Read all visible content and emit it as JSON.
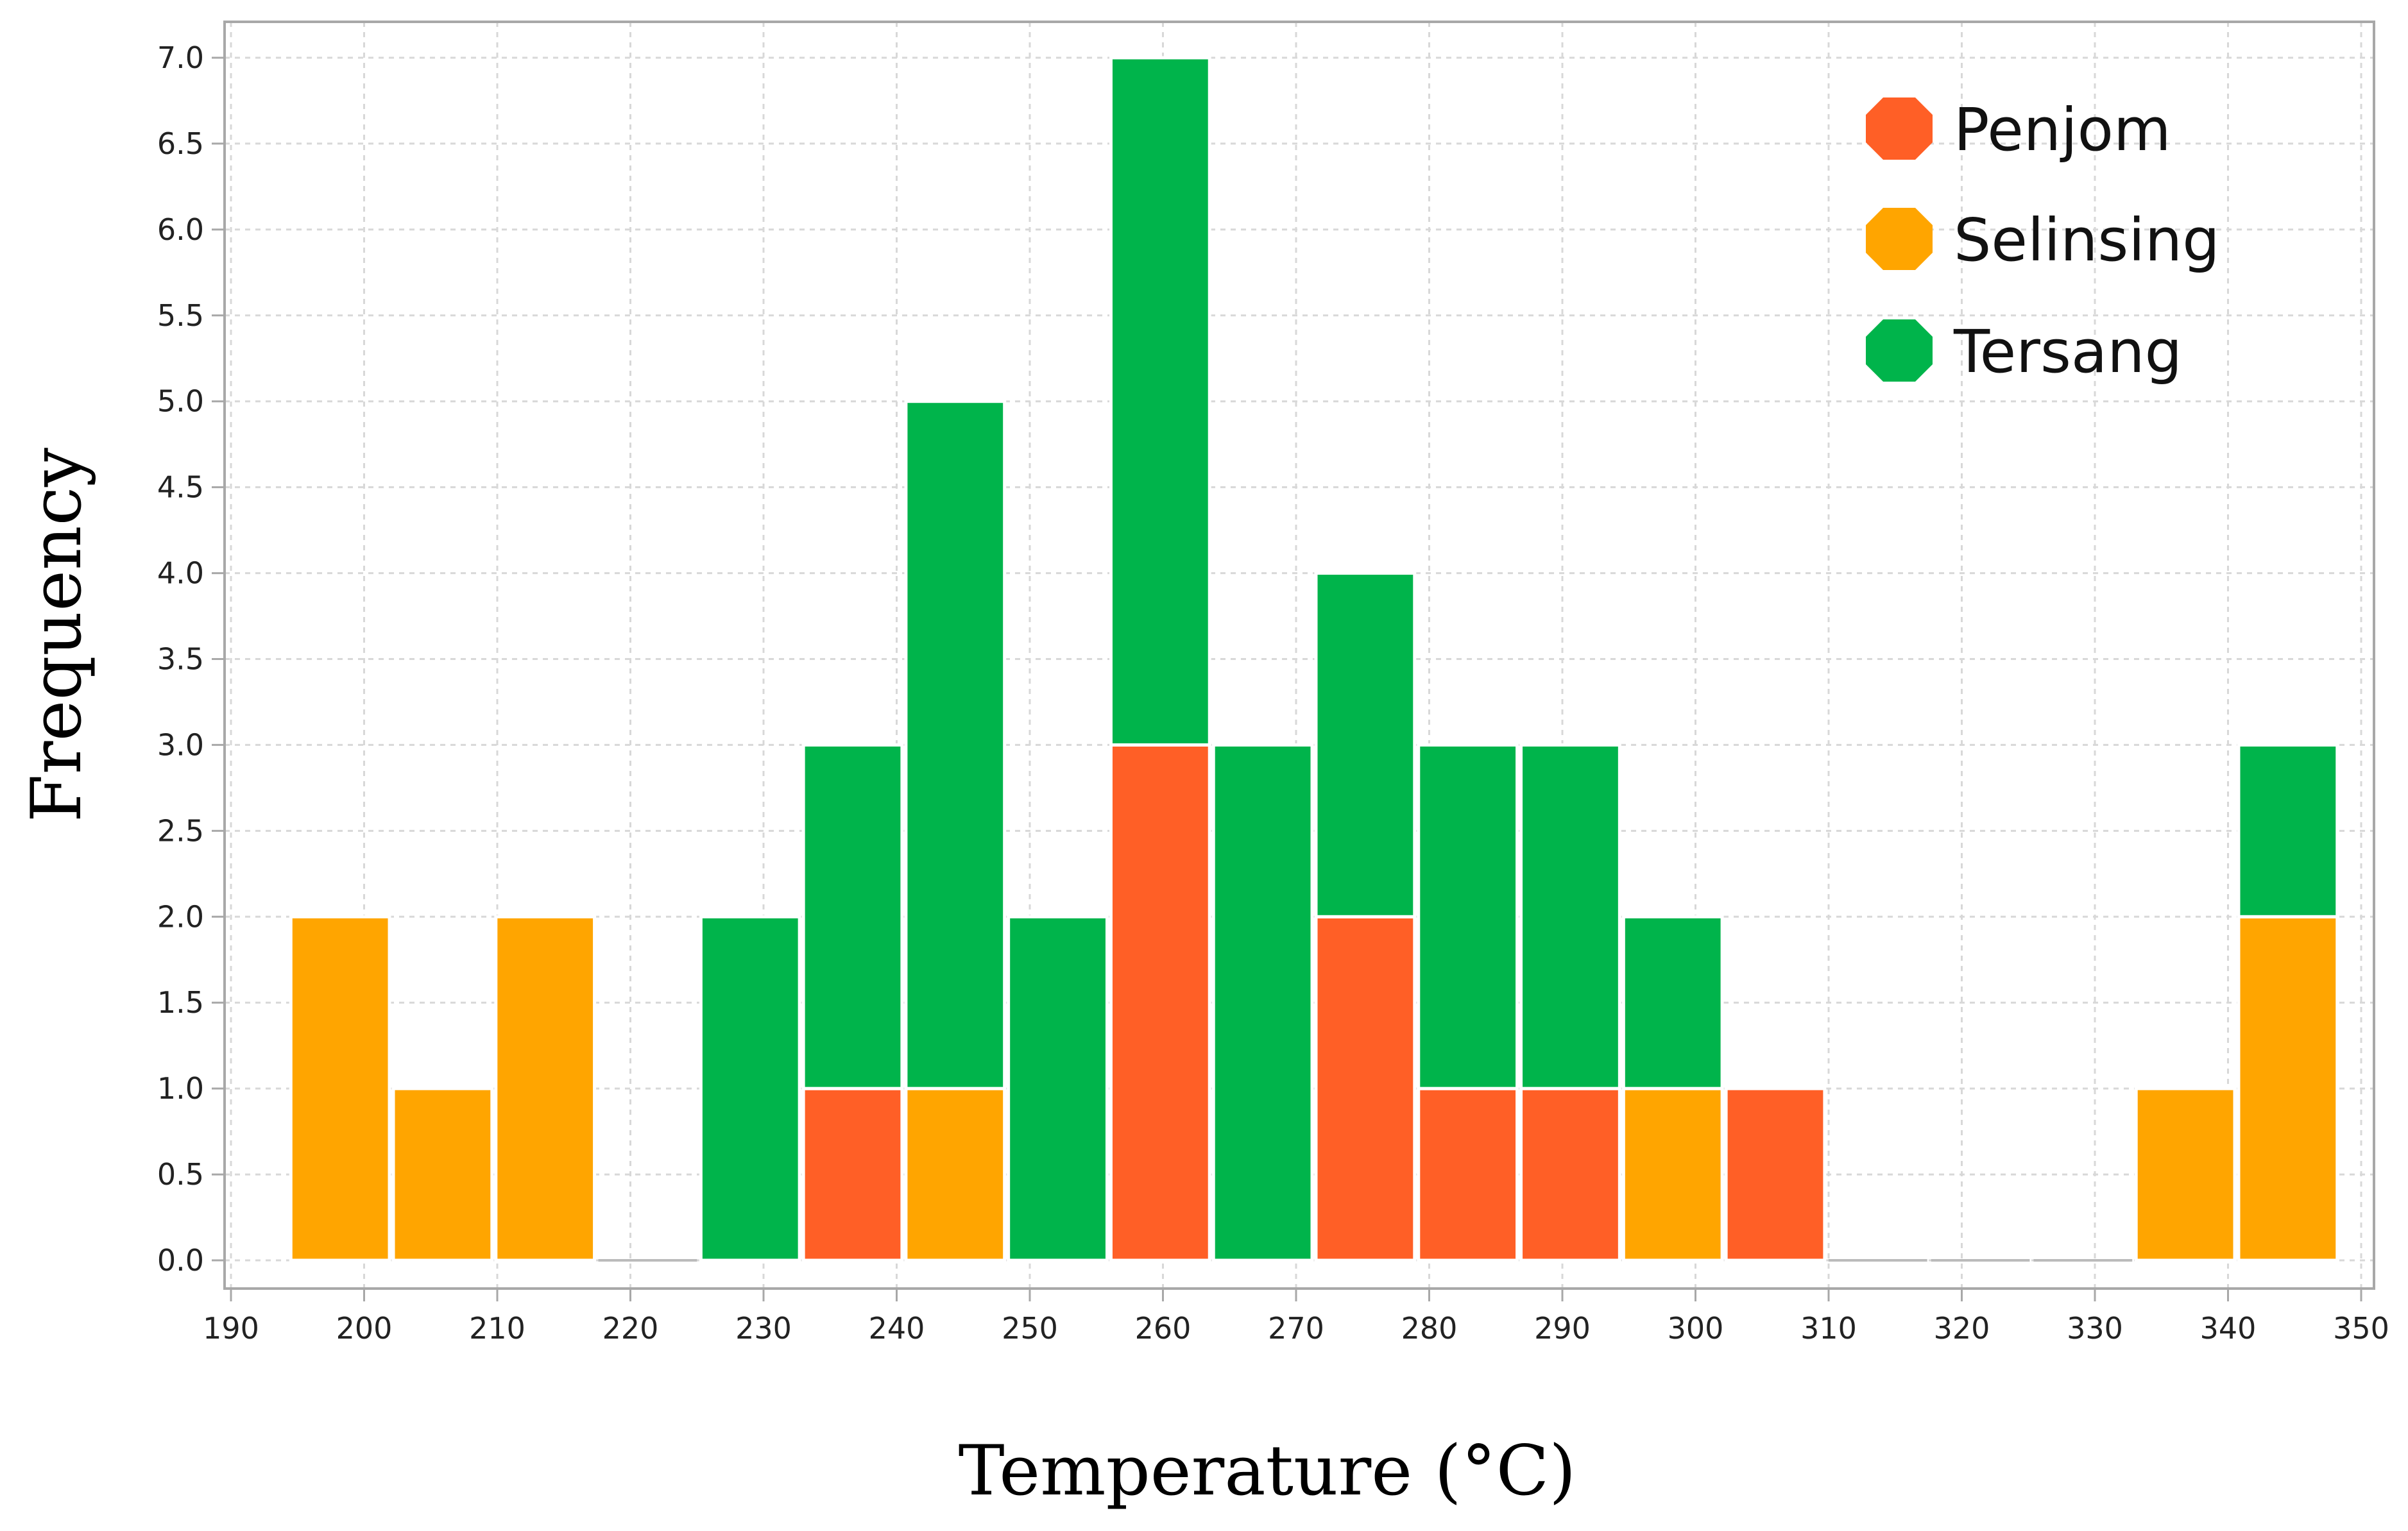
{
  "colors": {
    "penjom": "#FF5F26",
    "selinsing": "#FFA500",
    "tersang": "#00B44B",
    "grid": "#D8D8D8",
    "frame": "#A8A8A8"
  },
  "chart_data": {
    "type": "bar",
    "stacked": true,
    "xlabel": "Temperature (°C)",
    "ylabel": "Frequency",
    "xlim": [
      190,
      350
    ],
    "ylim": [
      0,
      7
    ],
    "x_ticks": [
      "190",
      "200",
      "210",
      "220",
      "230",
      "240",
      "250",
      "260",
      "270",
      "280",
      "290",
      "300",
      "310",
      "320",
      "330",
      "340",
      "350"
    ],
    "y_ticks": [
      "0.0",
      "0.5",
      "1.0",
      "1.5",
      "2.0",
      "2.5",
      "3.0",
      "3.5",
      "4.0",
      "4.5",
      "5.0",
      "5.5",
      "6.0",
      "6.5",
      "7.0"
    ],
    "bin_width": 7.7,
    "bin_centers": [
      198.2,
      205.9,
      213.6,
      221.3,
      229.0,
      236.7,
      244.4,
      252.1,
      259.8,
      267.5,
      275.2,
      282.9,
      290.6,
      298.3,
      306.0,
      313.7,
      321.4,
      329.1,
      336.8,
      344.5
    ],
    "legend_position": "top-right",
    "series": [
      {
        "name": "Penjom",
        "color": "#FF5F26",
        "values": [
          0,
          0,
          0,
          0,
          0,
          1,
          0,
          0,
          3,
          0,
          2,
          1,
          1,
          0,
          1,
          0,
          0,
          0,
          0,
          0
        ]
      },
      {
        "name": "Selinsing",
        "color": "#FFA500",
        "values": [
          2,
          1,
          2,
          0,
          0,
          0,
          1,
          0,
          0,
          0,
          0,
          0,
          0,
          1,
          0,
          0,
          0,
          0,
          1,
          2
        ]
      },
      {
        "name": "Tersang",
        "color": "#00B44B",
        "values": [
          0,
          0,
          0,
          0,
          2,
          2,
          4,
          2,
          4,
          3,
          2,
          2,
          2,
          1,
          0,
          0,
          0,
          0,
          0,
          1
        ]
      }
    ]
  }
}
